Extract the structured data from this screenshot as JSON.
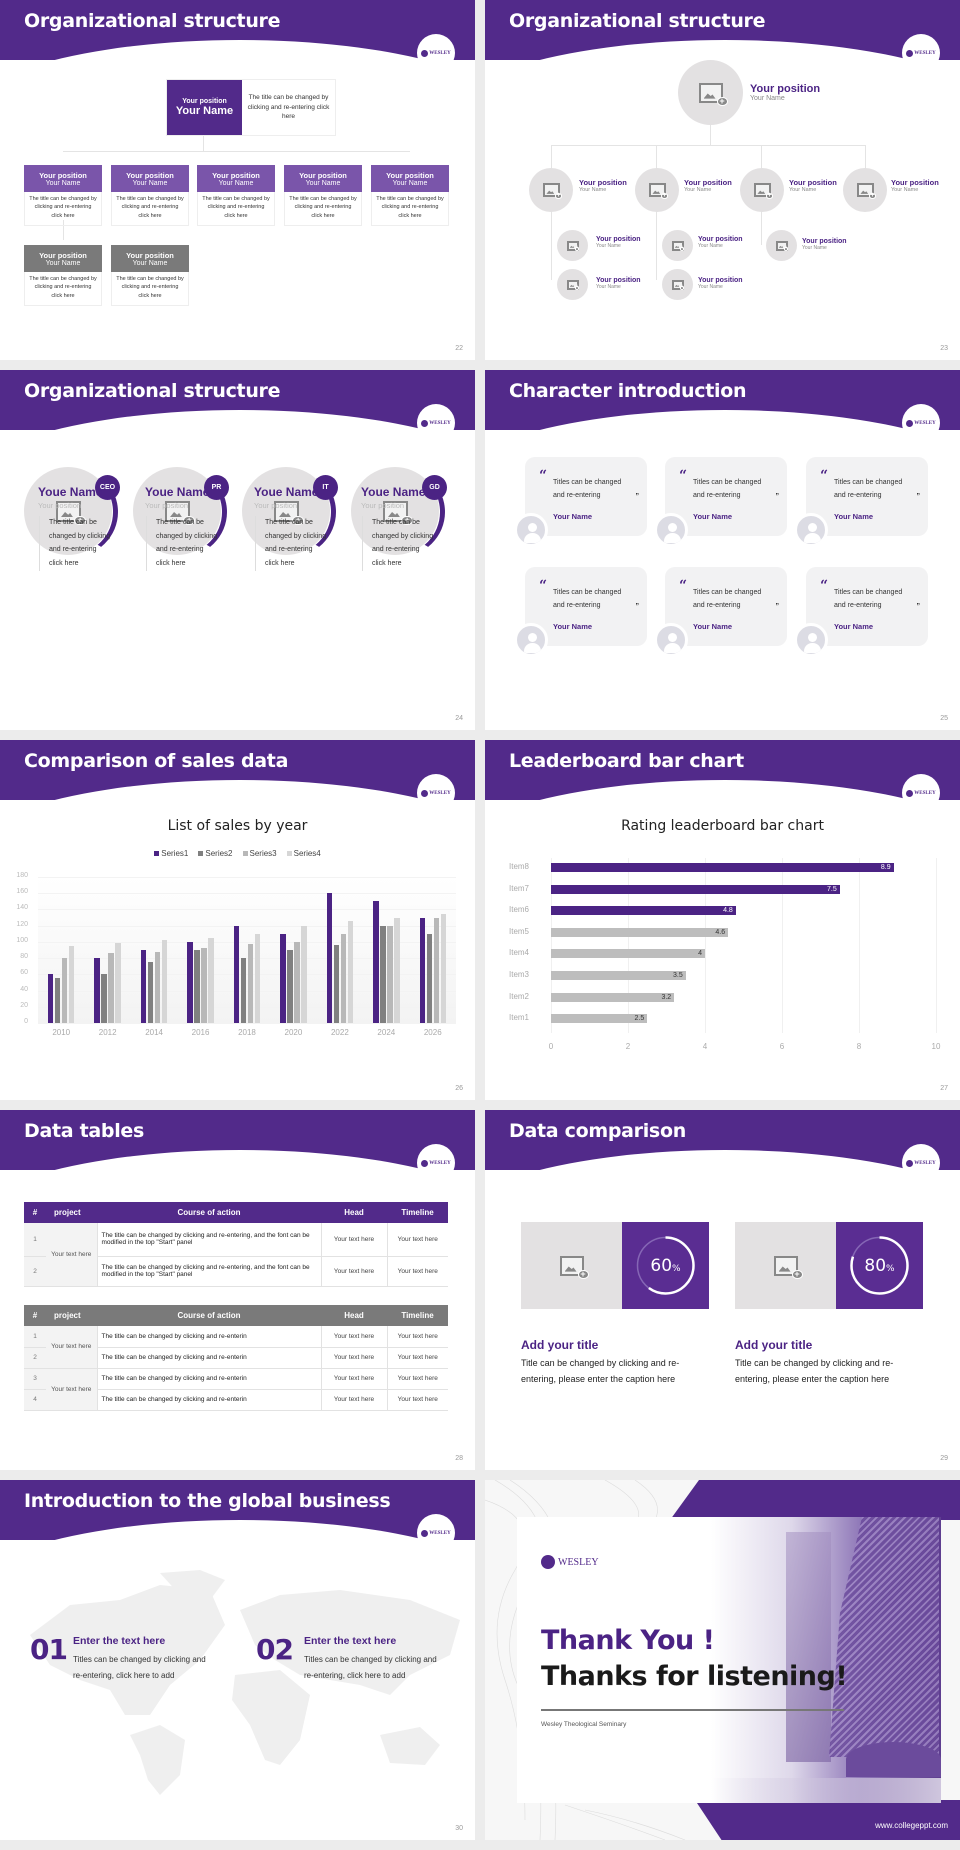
{
  "theme": {
    "primary": "#522a8a",
    "primary_light": "#7a55aa",
    "gray_dark": "#7a7a7a",
    "placeholder_gray": "#e3e1e2"
  },
  "logo_text": "WESLEY",
  "slides": [
    {
      "id": "s22",
      "title": "Organizational structure",
      "page": "22",
      "top_box": {
        "position": "Your position",
        "name": "Your Name",
        "desc": "The title can be changed by clicking and re-entering click here"
      },
      "cards": [
        {
          "position": "Your position",
          "name": "Your Name",
          "desc": "The title can be changed by clicking and re-entering click here",
          "style": "purple"
        },
        {
          "position": "Your position",
          "name": "Your Name",
          "desc": "The title can be changed by clicking and re-entering click here",
          "style": "purple"
        },
        {
          "position": "Your position",
          "name": "Your Name",
          "desc": "The title can be changed by clicking and re-entering click here",
          "style": "purple"
        },
        {
          "position": "Your position",
          "name": "Your Name",
          "desc": "The title can be changed by clicking and re-entering click here",
          "style": "purple"
        },
        {
          "position": "Your position",
          "name": "Your Name",
          "desc": "The title can be changed by clicking and re-entering click here",
          "style": "purple"
        },
        {
          "position": "Your position",
          "name": "Your Name",
          "desc": "The title can be changed by clicking and re-entering click here",
          "style": "gray"
        },
        {
          "position": "Your position",
          "name": "Your Name",
          "desc": "The title can be changed by clicking and re-entering click here",
          "style": "gray"
        }
      ]
    },
    {
      "id": "s23",
      "title": "Organizational structure",
      "page": "23",
      "top": {
        "position": "Your position",
        "name": "Your Name"
      },
      "level2": [
        {
          "position": "Your position",
          "name": "Your Name"
        },
        {
          "position": "Your position",
          "name": "Your Name"
        },
        {
          "position": "Your position",
          "name": "Your Name"
        },
        {
          "position": "Your position",
          "name": "Your Name"
        }
      ],
      "level3": [
        {
          "position": "Your position",
          "name": "Your Name"
        },
        {
          "position": "Your position",
          "name": "Your Name"
        },
        {
          "position": "Your position",
          "name": "Your Name"
        },
        {
          "position": "Your position",
          "name": "Your Name"
        },
        {
          "position": "Your position",
          "name": "Your Name"
        }
      ]
    },
    {
      "id": "s24",
      "title": "Organizational structure",
      "page": "24",
      "members": [
        {
          "badge": "CEO",
          "name": "Youe Name",
          "position": "Your position",
          "desc": "The title can be changed by clicking and re-entering click here"
        },
        {
          "badge": "PR",
          "name": "Youe Name",
          "position": "Your position",
          "desc": "The title can be changed by clicking and re-entering click here"
        },
        {
          "badge": "IT",
          "name": "Youe Name",
          "position": "Your position",
          "desc": "The title can be changed by clicking and re-entering click here"
        },
        {
          "badge": "GD",
          "name": "Youe Name",
          "position": "Your position",
          "desc": "The title can be changed by clicking and re-entering click here"
        }
      ]
    },
    {
      "id": "s25",
      "title": "Character introduction",
      "page": "25",
      "quote_open": "“",
      "quote_close": "”",
      "cards": [
        {
          "text": "Titles can be changed and re-entering",
          "name": "Your Name"
        },
        {
          "text": "Titles can be changed and re-entering",
          "name": "Your Name"
        },
        {
          "text": "Titles can be changed and re-entering",
          "name": "Your Name"
        },
        {
          "text": "Titles can be changed and re-entering",
          "name": "Your Name"
        },
        {
          "text": "Titles can be changed and re-entering",
          "name": "Your Name"
        },
        {
          "text": "Titles can be changed and re-entering",
          "name": "Your Name"
        }
      ]
    },
    {
      "id": "s26",
      "title": "Comparison of sales data",
      "page": "26"
    },
    {
      "id": "s27",
      "title": "Leaderboard bar chart",
      "page": "27"
    },
    {
      "id": "s28",
      "title": "Data tables",
      "page": "28",
      "table1": {
        "headers": [
          "#",
          "project",
          "Course of action",
          "Head",
          "Timeline"
        ],
        "project_cells": [
          "Your text here"
        ],
        "rows": [
          {
            "num": "1",
            "course": " The title can be changed by clicking and re-entering, and the font can be modified in the top \"Start\" panel",
            "head": "Your text here",
            "timeline": "Your text here"
          },
          {
            "num": "2",
            "course": "The title can be changed by clicking and re-entering, and the font can be modified in the top \"Start\" panel",
            "head": "Your text here",
            "timeline": "Your text here"
          }
        ]
      },
      "table2": {
        "headers": [
          "#",
          "project",
          "Course of action",
          "Head",
          "Timeline"
        ],
        "project_cells": [
          "Your text here",
          "Your text here"
        ],
        "rows": [
          {
            "num": "1",
            "course": "The title can be changed by clicking and re-enterin",
            "head": "Your text here",
            "timeline": "Your text here"
          },
          {
            "num": "2",
            "course": "The title can be changed by clicking and re-enterin",
            "head": "Your text here",
            "timeline": "Your text here"
          },
          {
            "num": "3",
            "course": "The title can be changed by clicking and re-enterin",
            "head": "Your text here",
            "timeline": "Your text here"
          },
          {
            "num": "4",
            "course": "The title can be changed by clicking and re-enterin",
            "head": "Your text here",
            "timeline": "Your text here"
          }
        ]
      }
    },
    {
      "id": "s29",
      "title": "Data comparison",
      "page": "29",
      "items": [
        {
          "percent": "60",
          "percent_sign": "%",
          "value": 60,
          "title": "Add your title",
          "desc": "Title can be changed by clicking and re-entering, please enter the caption here"
        },
        {
          "percent": "80",
          "percent_sign": "%",
          "value": 80,
          "title": "Add your title",
          "desc": "Title can be changed by clicking and re-entering, please enter the caption here"
        }
      ]
    },
    {
      "id": "s30",
      "title": "Introduction to the global business",
      "page": "30",
      "items": [
        {
          "num": "01",
          "title": "Enter the text here",
          "desc": "Titles can be changed by clicking and re-entering, click here to add"
        },
        {
          "num": "02",
          "title": "Enter the text here",
          "desc": "Titles can be changed by clicking and re-entering, click here to add"
        }
      ]
    },
    {
      "id": "s31",
      "logo": "WESLEY",
      "thank_you": "Thank You !",
      "thanks_listening": "Thanks for listening!",
      "institution": "Wesley Theological Seminary",
      "url": "www.collegeppt.com"
    }
  ],
  "chart_data": [
    {
      "type": "bar",
      "title": "List of sales by year",
      "categories": [
        "2010",
        "2012",
        "2014",
        "2016",
        "2018",
        "2020",
        "2022",
        "2024",
        "2026"
      ],
      "series": [
        {
          "name": "Series1",
          "color": "#4b2384",
          "values": [
            60,
            80,
            90,
            100,
            120,
            110,
            160,
            150,
            130
          ]
        },
        {
          "name": "Series2",
          "color": "#808080",
          "values": [
            55,
            60,
            75,
            90,
            80,
            90,
            96,
            120,
            110
          ]
        },
        {
          "name": "Series3",
          "color": "#b8b8b8",
          "values": [
            80,
            86,
            88,
            92,
            98,
            100,
            110,
            120,
            130
          ]
        },
        {
          "name": "Series4",
          "color": "#d6d6d6",
          "values": [
            95,
            99,
            102,
            105,
            110,
            120,
            126,
            130,
            135
          ]
        }
      ],
      "yticks": [
        "0",
        "20",
        "40",
        "60",
        "80",
        "100",
        "120",
        "140",
        "160",
        "180"
      ],
      "ylim": [
        0,
        180
      ],
      "xlabel": "",
      "ylabel": "",
      "legend_position": "top",
      "grid": true
    },
    {
      "type": "bar",
      "orientation": "horizontal",
      "title": "Rating leaderboard bar chart",
      "categories": [
        "Item8",
        "Item7",
        "Item6",
        "Item5",
        "Item4",
        "Item3",
        "Item2",
        "Item1"
      ],
      "values": [
        8.9,
        7.5,
        4.8,
        4.6,
        4,
        3.5,
        3.2,
        2.5
      ],
      "labels": [
        "8.9",
        "7.5",
        "4.8",
        "4.6",
        "4",
        "3.5",
        "3.2",
        "2.5"
      ],
      "highlight_top": 3,
      "colors": {
        "highlight": "#4b2384",
        "normal": "#bdbdbd"
      },
      "xticks": [
        "0",
        "2",
        "4",
        "6",
        "8",
        "10"
      ],
      "xlim": [
        0,
        10
      ],
      "grid": true
    }
  ]
}
